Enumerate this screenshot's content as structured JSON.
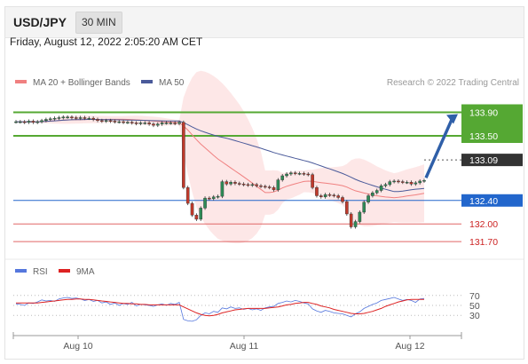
{
  "header": {
    "symbol": "USD/JPY",
    "timeframe": "30 MIN",
    "datetime": "Friday, August 12, 2022 2:05:20 AM CET"
  },
  "colors": {
    "ma20": "#f08080",
    "ma50": "#4a5a9a",
    "support_line": "#2266cc",
    "resistance_line": "#55a833",
    "pivot_label": "#333333",
    "candle_up": "#2e8b57",
    "candle_down": "#c0392b",
    "rsi": "#5577dd",
    "rsi_ma": "#dd2222",
    "band": "#fde3e3"
  },
  "legend": {
    "ma20_label": "MA 20 + Bollinger Bands",
    "ma50_label": "MA 50",
    "credit": "Research © 2022 Trading Central"
  },
  "rsi_legend": {
    "rsi_label": "RSI",
    "ma_label": "9MA"
  },
  "chart_data": [
    {
      "type": "candlestick",
      "price_range": [
        131.55,
        134.15
      ],
      "x_ticks": [
        "Aug 10",
        "Aug 11",
        "Aug 12"
      ],
      "price_series": [
        133.74,
        133.74,
        133.73,
        133.75,
        133.73,
        133.74,
        133.76,
        133.78,
        133.79,
        133.8,
        133.81,
        133.82,
        133.82,
        133.81,
        133.8,
        133.81,
        133.8,
        133.8,
        133.78,
        133.76,
        133.75,
        133.76,
        133.75,
        133.74,
        133.74,
        133.73,
        133.73,
        133.72,
        133.71,
        133.72,
        133.72,
        133.7,
        133.68,
        133.7,
        133.72,
        133.72,
        133.72,
        133.71,
        133.73,
        132.62,
        132.35,
        132.15,
        132.08,
        132.27,
        132.44,
        132.43,
        132.46,
        132.47,
        132.72,
        132.68,
        132.71,
        132.69,
        132.68,
        132.67,
        132.66,
        132.67,
        132.65,
        132.64,
        132.63,
        132.62,
        132.58,
        132.75,
        132.82,
        132.85,
        132.87,
        132.86,
        132.86,
        132.85,
        132.84,
        132.62,
        132.48,
        132.46,
        132.5,
        132.49,
        132.48,
        132.45,
        132.38,
        132.17,
        131.95,
        132.04,
        132.2,
        132.37,
        132.48,
        132.53,
        132.57,
        132.65,
        132.67,
        132.72,
        132.73,
        132.72,
        132.71,
        132.71,
        132.68,
        132.7,
        132.73,
        132.74
      ],
      "levels": [
        {
          "value": 133.9,
          "label": "133.90",
          "kind": "resistance"
        },
        {
          "value": 133.5,
          "label": "133.50",
          "kind": "resistance"
        },
        {
          "value": 133.09,
          "label": "133.09",
          "kind": "pivot"
        },
        {
          "value": 132.4,
          "label": "132.40",
          "kind": "support"
        },
        {
          "value": 132.0,
          "label": "132.00",
          "kind": "support"
        },
        {
          "value": 131.7,
          "label": "131.70",
          "kind": "support"
        }
      ],
      "series": [
        {
          "name": "MA 20 + Bollinger Bands"
        },
        {
          "name": "MA 50"
        }
      ]
    },
    {
      "type": "line",
      "y_ticks": [
        "70",
        "50",
        "30"
      ],
      "y_range": [
        0,
        100
      ],
      "rsi": [
        53,
        52,
        50,
        55,
        54,
        57,
        61,
        59,
        60,
        58,
        63,
        65,
        66,
        64,
        65,
        63,
        60,
        62,
        58,
        60,
        55,
        57,
        52,
        55,
        50,
        54,
        52,
        56,
        49,
        52,
        51,
        50,
        48,
        51,
        53,
        50,
        54,
        52,
        56,
        22,
        19,
        18,
        21,
        30,
        35,
        33,
        38,
        36,
        45,
        43,
        47,
        44,
        45,
        42,
        44,
        41,
        43,
        40,
        45,
        47,
        48,
        54,
        56,
        59,
        57,
        60,
        58,
        55,
        53,
        43,
        39,
        36,
        40,
        38,
        35,
        34,
        33,
        30,
        27,
        33,
        37,
        44,
        48,
        52,
        55,
        60,
        62,
        64,
        66,
        63,
        60,
        62,
        60,
        56,
        63,
        64
      ],
      "ma": [
        55,
        55,
        55,
        55,
        55,
        55,
        56,
        57,
        58,
        59,
        60,
        61,
        62,
        62,
        63,
        63,
        62,
        62,
        61,
        60,
        59,
        58,
        57,
        56,
        55,
        54,
        54,
        53,
        53,
        52,
        52,
        51,
        51,
        51,
        51,
        51,
        51,
        51,
        51,
        47,
        43,
        39,
        35,
        32,
        30,
        29,
        30,
        32,
        35,
        37,
        39,
        41,
        42,
        43,
        44,
        44,
        44,
        44,
        44,
        45,
        46,
        47,
        49,
        51,
        52,
        54,
        55,
        56,
        56,
        54,
        52,
        49,
        47,
        45,
        42,
        40,
        38,
        36,
        34,
        33,
        33,
        34,
        36,
        38,
        41,
        44,
        48,
        51,
        54,
        57,
        59,
        61,
        62,
        62,
        62,
        62
      ]
    }
  ]
}
